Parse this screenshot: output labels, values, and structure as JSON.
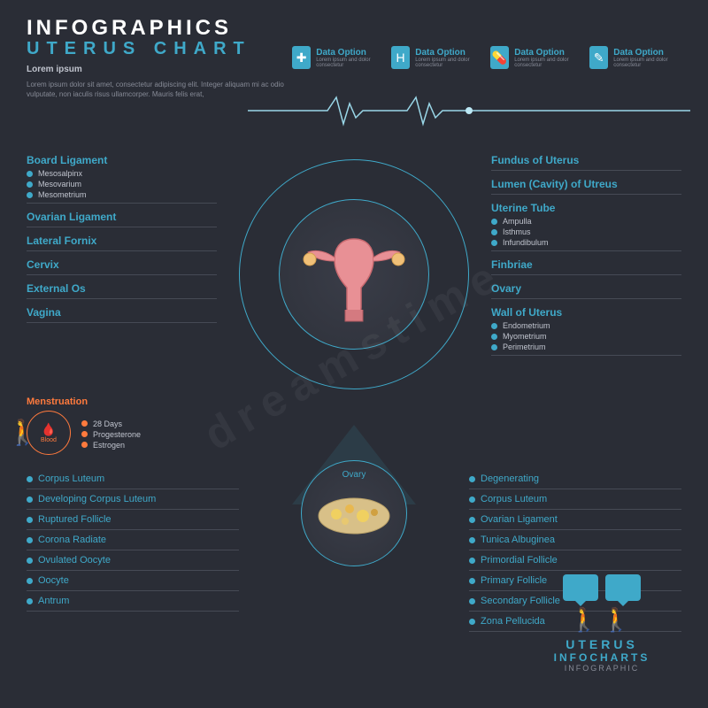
{
  "header": {
    "title_main": "INFOGRAPHICS",
    "title_sub": "UTERUS  CHART",
    "lorem_title": "Lorem ipsum",
    "lorem_body": "Lorem ipsum dolor sit amet, consectetur adipiscing elit. Integer aliquam mi ac odio vulputate, non iaculis risus ullamcorper. Mauris felis erat,",
    "options": [
      {
        "icon": "✚",
        "title": "Data Option",
        "sub": "Lorem ipsum and dolor consectetur"
      },
      {
        "icon": "H",
        "title": "Data Option",
        "sub": "Lorem ipsum and dolor consectetur"
      },
      {
        "icon": "💊",
        "title": "Data Option",
        "sub": "Lorem ipsum and dolor consectetur"
      },
      {
        "icon": "✎",
        "title": "Data Option",
        "sub": "Lorem ipsum and dolor consectetur"
      }
    ]
  },
  "colors": {
    "bg": "#2a2d36",
    "accent": "#3fa9c9",
    "orange": "#ff7a3d",
    "pink": "#e89095",
    "divider": "#464a55",
    "muted": "#868a96"
  },
  "left_groups": [
    {
      "title": "Board Ligament",
      "items": [
        "Mesosalpinx",
        "Mesovarium",
        "Mesometrium"
      ]
    },
    {
      "title": "Ovarian Ligament",
      "items": []
    },
    {
      "title": "Lateral Fornix",
      "items": []
    },
    {
      "title": "Cervix",
      "items": []
    },
    {
      "title": "External Os",
      "items": []
    },
    {
      "title": "Vagina",
      "items": []
    }
  ],
  "right_groups": [
    {
      "title": "Fundus of Uterus",
      "items": []
    },
    {
      "title": "Lumen (Cavity) of Utreus",
      "items": []
    },
    {
      "title": "Uterine Tube",
      "items": [
        "Ampulla",
        "Isthmus",
        "Infundibulum"
      ]
    },
    {
      "title": "Finbriae",
      "items": []
    },
    {
      "title": "Ovary",
      "items": []
    },
    {
      "title": "Wall of Uterus",
      "items": [
        "Endometrium",
        "Myometrium",
        "Perimetrium"
      ]
    }
  ],
  "menstruation": {
    "title": "Menstruation",
    "center": "Blood",
    "items": [
      "28 Days",
      "Progesterone",
      "Estrogen"
    ]
  },
  "ovary": {
    "label": "Ovary",
    "left": [
      "Corpus Luteum",
      "Developing Corpus Luteum",
      "Ruptured Follicle",
      "Corona Radiate",
      "Ovulated Oocyte",
      "Oocyte",
      "Antrum"
    ],
    "right": [
      "Degenerating",
      "Corpus Luteum",
      "Ovarian Ligament",
      "Tunica Albuginea",
      "Primordial Follicle",
      "Primary Follicle",
      "Secondary Follicle",
      "Zona Pellucida"
    ]
  },
  "footer": {
    "line1": "UTERUS",
    "line2": "INFOCHARTS",
    "line3": "INFOGRAPHIC"
  },
  "typography": {
    "title_fontsize": 24,
    "label_fontsize": 12,
    "subitem_fontsize": 9
  }
}
